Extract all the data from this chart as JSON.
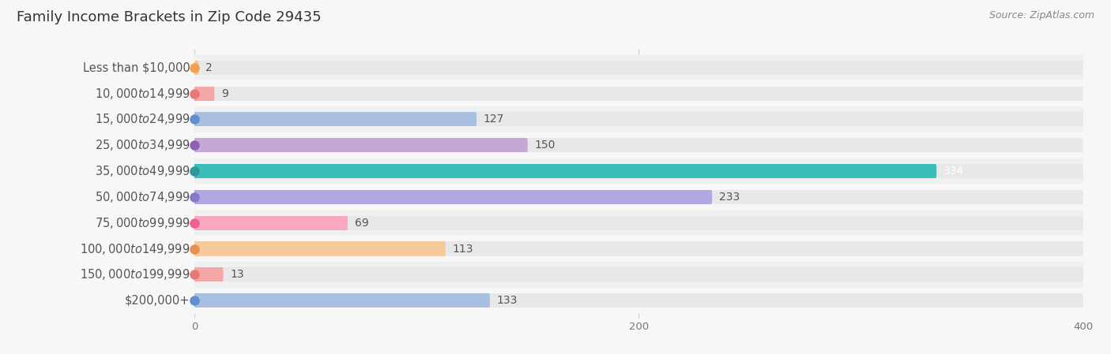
{
  "title": "Family Income Brackets in Zip Code 29435",
  "source": "Source: ZipAtlas.com",
  "categories": [
    "Less than $10,000",
    "$10,000 to $14,999",
    "$15,000 to $24,999",
    "$25,000 to $34,999",
    "$35,000 to $49,999",
    "$50,000 to $74,999",
    "$75,000 to $99,999",
    "$100,000 to $149,999",
    "$150,000 to $199,999",
    "$200,000+"
  ],
  "values": [
    2,
    9,
    127,
    150,
    334,
    233,
    69,
    113,
    13,
    133
  ],
  "bar_colors": [
    "#f5c99a",
    "#f4a7a7",
    "#a8bfe0",
    "#c5a8d4",
    "#3abdb8",
    "#b0a8e0",
    "#f9a8c0",
    "#f5c99a",
    "#f4a7a7",
    "#a8bfe0"
  ],
  "dot_colors": [
    "#f0a050",
    "#e87878",
    "#6090d0",
    "#9060b8",
    "#2a9898",
    "#8878c8",
    "#f06090",
    "#e89050",
    "#e87878",
    "#6090d0"
  ],
  "xlim_max": 400,
  "xticks": [
    0,
    200,
    400
  ],
  "background_color": "#f7f7f7",
  "bar_background_color": "#e8e8e8",
  "title_fontsize": 13,
  "label_fontsize": 10.5,
  "value_fontsize": 10,
  "source_fontsize": 9
}
